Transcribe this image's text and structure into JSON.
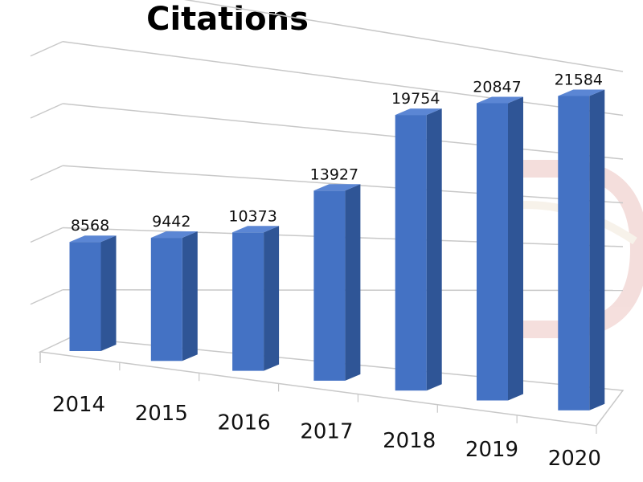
{
  "chart_data": {
    "type": "bar",
    "title": "Citations",
    "categories": [
      "2014",
      "2015",
      "2016",
      "2017",
      "2018",
      "2019",
      "2020"
    ],
    "values": [
      8568,
      9442,
      10373,
      13927,
      19754,
      20847,
      21584
    ],
    "ylim": [
      0,
      30000
    ],
    "grid": true,
    "data_labels": true,
    "style": "3d-column",
    "colors": {
      "bar_front": "#4472C4",
      "bar_side": "#2F5596",
      "bar_top": "#5B86D4",
      "grid": "#C8C8C8"
    }
  }
}
